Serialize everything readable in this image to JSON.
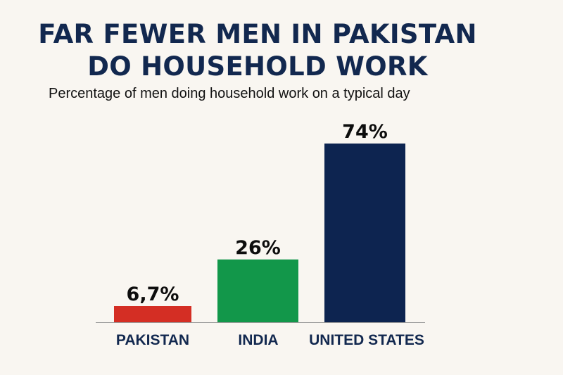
{
  "header": {
    "title_line1": "FAR FEWER MEN IN PAKISTAN",
    "title_line2": "DO HOUSEHOLD WORK",
    "subtitle": "Percentage of men doing household work on a typical day"
  },
  "chart_data": {
    "type": "bar",
    "title": "FAR FEWER MEN IN PAKISTAN DO HOUSEHOLD WORK",
    "subtitle": "Percentage of men doing household work on a typical day",
    "categories": [
      "PAKISTAN",
      "INDIA",
      "UNITED STATES"
    ],
    "values": [
      6.7,
      26,
      74
    ],
    "data_labels": [
      "6,7%",
      "26%",
      "74%"
    ],
    "colors": [
      "#d42e24",
      "#12974a",
      "#0d2450"
    ],
    "xlabel": "",
    "ylabel": "",
    "grid": false,
    "legend": "none"
  }
}
